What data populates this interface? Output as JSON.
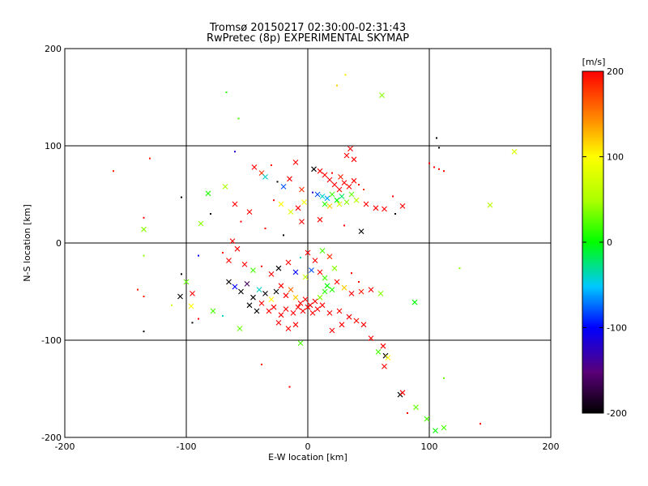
{
  "chart_data": {
    "type": "scatter",
    "title": "Tromsø 20150217 02:30:00-02:31:43",
    "subtitle": "RwPretec (8p) EXPERIMENTAL SKYMAP",
    "xlabel": "E-W location [km]",
    "ylabel": "N-S location [km]",
    "xlim": [
      -200,
      200
    ],
    "ylim": [
      -200,
      200
    ],
    "x_ticks": [
      "-200",
      "-100",
      "0",
      "100",
      "200"
    ],
    "y_ticks": [
      "-200",
      "-100",
      "0",
      "100",
      "200"
    ],
    "grid": true,
    "colorbar": {
      "label": "[m/s]",
      "range": [
        -200,
        200
      ],
      "ticks": [
        "-200",
        "-100",
        "0",
        "100",
        "200"
      ],
      "colormap": "rainbow (black-purple-blue-cyan-green-yellow-orange-red)"
    },
    "points": [
      {
        "x": -67,
        "y": 155,
        "v": 10,
        "m": "dot"
      },
      {
        "x": -57,
        "y": 128,
        "v": 20,
        "m": "dot"
      },
      {
        "x": 24,
        "y": 162,
        "v": 120,
        "m": "dot"
      },
      {
        "x": 31,
        "y": 173,
        "v": 110,
        "m": "dot"
      },
      {
        "x": 61,
        "y": 152,
        "v": 40,
        "m": "x"
      },
      {
        "x": -60,
        "y": 94,
        "v": -120,
        "m": "dot"
      },
      {
        "x": -130,
        "y": 87,
        "v": 190,
        "m": "dot"
      },
      {
        "x": -160,
        "y": 74,
        "v": 190,
        "m": "dot"
      },
      {
        "x": -104,
        "y": 47,
        "v": -200,
        "m": "dot"
      },
      {
        "x": 106,
        "y": 108,
        "v": -200,
        "m": "dot"
      },
      {
        "x": 108,
        "y": 98,
        "v": -200,
        "m": "dot"
      },
      {
        "x": 170,
        "y": 94,
        "v": 80,
        "m": "x"
      },
      {
        "x": 100,
        "y": 82,
        "v": 200,
        "m": "dot"
      },
      {
        "x": 104,
        "y": 78,
        "v": 200,
        "m": "dot"
      },
      {
        "x": 108,
        "y": 76,
        "v": 200,
        "m": "dot"
      },
      {
        "x": 112,
        "y": 74,
        "v": 200,
        "m": "dot"
      },
      {
        "x": 150,
        "y": 39,
        "v": 60,
        "m": "x"
      },
      {
        "x": -44,
        "y": 78,
        "v": 200,
        "m": "x"
      },
      {
        "x": -38,
        "y": 72,
        "v": 180,
        "m": "x"
      },
      {
        "x": -35,
        "y": 68,
        "v": -40,
        "m": "x"
      },
      {
        "x": -30,
        "y": 80,
        "v": 200,
        "m": "dot"
      },
      {
        "x": -25,
        "y": 63,
        "v": -200,
        "m": "dot"
      },
      {
        "x": -20,
        "y": 58,
        "v": -80,
        "m": "x"
      },
      {
        "x": -15,
        "y": 66,
        "v": 200,
        "m": "x"
      },
      {
        "x": -10,
        "y": 83,
        "v": 200,
        "m": "x"
      },
      {
        "x": -5,
        "y": 55,
        "v": 180,
        "m": "x"
      },
      {
        "x": 5,
        "y": 76,
        "v": -200,
        "m": "x"
      },
      {
        "x": 10,
        "y": 74,
        "v": 200,
        "m": "x"
      },
      {
        "x": 14,
        "y": 70,
        "v": 200,
        "m": "x"
      },
      {
        "x": 18,
        "y": 65,
        "v": 200,
        "m": "x"
      },
      {
        "x": 22,
        "y": 60,
        "v": 200,
        "m": "x"
      },
      {
        "x": 26,
        "y": 55,
        "v": 200,
        "m": "x"
      },
      {
        "x": 30,
        "y": 62,
        "v": 200,
        "m": "x"
      },
      {
        "x": 34,
        "y": 58,
        "v": 200,
        "m": "x"
      },
      {
        "x": 38,
        "y": 64,
        "v": 200,
        "m": "x"
      },
      {
        "x": 27,
        "y": 68,
        "v": 190,
        "m": "x"
      },
      {
        "x": 20,
        "y": 72,
        "v": 200,
        "m": "dot"
      },
      {
        "x": 42,
        "y": 60,
        "v": 200,
        "m": "dot"
      },
      {
        "x": 46,
        "y": 55,
        "v": 180,
        "m": "dot"
      },
      {
        "x": 35,
        "y": 97,
        "v": 200,
        "m": "x"
      },
      {
        "x": 32,
        "y": 90,
        "v": 200,
        "m": "x"
      },
      {
        "x": 38,
        "y": 86,
        "v": 200,
        "m": "x"
      },
      {
        "x": 8,
        "y": 50,
        "v": -80,
        "m": "x"
      },
      {
        "x": 12,
        "y": 48,
        "v": -40,
        "m": "x"
      },
      {
        "x": 16,
        "y": 46,
        "v": -60,
        "m": "x"
      },
      {
        "x": 20,
        "y": 50,
        "v": 20,
        "m": "x"
      },
      {
        "x": 24,
        "y": 44,
        "v": 0,
        "m": "x"
      },
      {
        "x": 28,
        "y": 48,
        "v": -20,
        "m": "x"
      },
      {
        "x": 32,
        "y": 42,
        "v": 40,
        "m": "x"
      },
      {
        "x": 36,
        "y": 50,
        "v": 30,
        "m": "x"
      },
      {
        "x": 14,
        "y": 40,
        "v": 10,
        "m": "x"
      },
      {
        "x": 18,
        "y": 38,
        "v": 120,
        "m": "x"
      },
      {
        "x": 26,
        "y": 40,
        "v": 80,
        "m": "x"
      },
      {
        "x": 40,
        "y": 44,
        "v": 60,
        "m": "x"
      },
      {
        "x": 4,
        "y": 52,
        "v": -120,
        "m": "dot"
      },
      {
        "x": -3,
        "y": 42,
        "v": 100,
        "m": "x"
      },
      {
        "x": -8,
        "y": 36,
        "v": 200,
        "m": "x"
      },
      {
        "x": -14,
        "y": 32,
        "v": 80,
        "m": "x"
      },
      {
        "x": -22,
        "y": 40,
        "v": 100,
        "m": "x"
      },
      {
        "x": -28,
        "y": 44,
        "v": 200,
        "m": "dot"
      },
      {
        "x": 48,
        "y": 40,
        "v": 200,
        "m": "x"
      },
      {
        "x": 56,
        "y": 36,
        "v": 200,
        "m": "x"
      },
      {
        "x": 63,
        "y": 35,
        "v": 200,
        "m": "x"
      },
      {
        "x": 72,
        "y": 30,
        "v": -200,
        "m": "dot"
      },
      {
        "x": 78,
        "y": 38,
        "v": 200,
        "m": "x"
      },
      {
        "x": 70,
        "y": 48,
        "v": 200,
        "m": "dot"
      },
      {
        "x": -68,
        "y": 58,
        "v": 50,
        "m": "x"
      },
      {
        "x": -82,
        "y": 51,
        "v": 10,
        "m": "x"
      },
      {
        "x": -60,
        "y": 40,
        "v": 200,
        "m": "x"
      },
      {
        "x": -48,
        "y": 32,
        "v": 200,
        "m": "x"
      },
      {
        "x": -80,
        "y": 30,
        "v": -200,
        "m": "dot"
      },
      {
        "x": -88,
        "y": 20,
        "v": 40,
        "m": "x"
      },
      {
        "x": -55,
        "y": 22,
        "v": 200,
        "m": "dot"
      },
      {
        "x": -135,
        "y": 26,
        "v": 200,
        "m": "dot"
      },
      {
        "x": -135,
        "y": 14,
        "v": 40,
        "m": "x"
      },
      {
        "x": -35,
        "y": 15,
        "v": 200,
        "m": "dot"
      },
      {
        "x": -20,
        "y": 8,
        "v": -200,
        "m": "dot"
      },
      {
        "x": -5,
        "y": 22,
        "v": 200,
        "m": "x"
      },
      {
        "x": 10,
        "y": 24,
        "v": 200,
        "m": "x"
      },
      {
        "x": 30,
        "y": 18,
        "v": 200,
        "m": "dot"
      },
      {
        "x": 44,
        "y": 12,
        "v": -200,
        "m": "x"
      },
      {
        "x": -62,
        "y": 2,
        "v": 200,
        "m": "x"
      },
      {
        "x": -58,
        "y": -6,
        "v": 200,
        "m": "x"
      },
      {
        "x": -70,
        "y": -10,
        "v": 200,
        "m": "dot"
      },
      {
        "x": -65,
        "y": -18,
        "v": 200,
        "m": "x"
      },
      {
        "x": -52,
        "y": -22,
        "v": 200,
        "m": "x"
      },
      {
        "x": -45,
        "y": -28,
        "v": 20,
        "m": "x"
      },
      {
        "x": -38,
        "y": -24,
        "v": 200,
        "m": "dot"
      },
      {
        "x": -30,
        "y": -32,
        "v": 200,
        "m": "x"
      },
      {
        "x": -24,
        "y": -26,
        "v": -200,
        "m": "x"
      },
      {
        "x": -16,
        "y": -20,
        "v": 200,
        "m": "x"
      },
      {
        "x": -10,
        "y": -30,
        "v": -100,
        "m": "x"
      },
      {
        "x": -6,
        "y": -15,
        "v": -40,
        "m": "dot"
      },
      {
        "x": 0,
        "y": -10,
        "v": 200,
        "m": "x"
      },
      {
        "x": 6,
        "y": -18,
        "v": 200,
        "m": "x"
      },
      {
        "x": 12,
        "y": -8,
        "v": 20,
        "m": "x"
      },
      {
        "x": 18,
        "y": -14,
        "v": 180,
        "m": "x"
      },
      {
        "x": 22,
        "y": -26,
        "v": 40,
        "m": "x"
      },
      {
        "x": 3,
        "y": -28,
        "v": -80,
        "m": "x"
      },
      {
        "x": -2,
        "y": -35,
        "v": 60,
        "m": "x"
      },
      {
        "x": 10,
        "y": -30,
        "v": 200,
        "m": "x"
      },
      {
        "x": 14,
        "y": -36,
        "v": 20,
        "m": "x"
      },
      {
        "x": 16,
        "y": -44,
        "v": 0,
        "m": "x"
      },
      {
        "x": 20,
        "y": -48,
        "v": 10,
        "m": "x"
      },
      {
        "x": 24,
        "y": -40,
        "v": 200,
        "m": "x"
      },
      {
        "x": 30,
        "y": -46,
        "v": 120,
        "m": "x"
      },
      {
        "x": 36,
        "y": -52,
        "v": 200,
        "m": "x"
      },
      {
        "x": 44,
        "y": -50,
        "v": 190,
        "m": "x"
      },
      {
        "x": 52,
        "y": -48,
        "v": 200,
        "m": "x"
      },
      {
        "x": 60,
        "y": -52,
        "v": 40,
        "m": "x"
      },
      {
        "x": -100,
        "y": -40,
        "v": 30,
        "m": "x"
      },
      {
        "x": -95,
        "y": -52,
        "v": 200,
        "m": "x"
      },
      {
        "x": -105,
        "y": -55,
        "v": -200,
        "m": "x"
      },
      {
        "x": -112,
        "y": -64,
        "v": 70,
        "m": "dot"
      },
      {
        "x": -96,
        "y": -65,
        "v": 100,
        "m": "x"
      },
      {
        "x": -135,
        "y": -55,
        "v": 190,
        "m": "dot"
      },
      {
        "x": -140,
        "y": -48,
        "v": 190,
        "m": "dot"
      },
      {
        "x": -65,
        "y": -40,
        "v": -200,
        "m": "x"
      },
      {
        "x": -60,
        "y": -45,
        "v": -100,
        "m": "x"
      },
      {
        "x": -55,
        "y": -50,
        "v": -200,
        "m": "x"
      },
      {
        "x": -50,
        "y": -42,
        "v": -160,
        "m": "x"
      },
      {
        "x": -45,
        "y": -56,
        "v": -200,
        "m": "x"
      },
      {
        "x": -40,
        "y": -48,
        "v": -40,
        "m": "x"
      },
      {
        "x": -35,
        "y": -52,
        "v": -200,
        "m": "x"
      },
      {
        "x": -30,
        "y": -58,
        "v": 100,
        "m": "x"
      },
      {
        "x": -26,
        "y": -50,
        "v": -200,
        "m": "x"
      },
      {
        "x": -22,
        "y": -44,
        "v": 200,
        "m": "x"
      },
      {
        "x": -18,
        "y": -54,
        "v": 200,
        "m": "x"
      },
      {
        "x": -14,
        "y": -48,
        "v": 160,
        "m": "x"
      },
      {
        "x": -10,
        "y": -56,
        "v": 120,
        "m": "x"
      },
      {
        "x": -6,
        "y": -62,
        "v": 200,
        "m": "x"
      },
      {
        "x": -2,
        "y": -58,
        "v": 200,
        "m": "x"
      },
      {
        "x": 2,
        "y": -64,
        "v": 200,
        "m": "x"
      },
      {
        "x": 6,
        "y": -60,
        "v": 200,
        "m": "x"
      },
      {
        "x": 10,
        "y": -56,
        "v": 40,
        "m": "x"
      },
      {
        "x": 14,
        "y": -50,
        "v": 10,
        "m": "x"
      },
      {
        "x": -48,
        "y": -64,
        "v": -200,
        "m": "x"
      },
      {
        "x": -42,
        "y": -70,
        "v": -200,
        "m": "x"
      },
      {
        "x": -38,
        "y": -62,
        "v": 200,
        "m": "x"
      },
      {
        "x": -32,
        "y": -70,
        "v": 200,
        "m": "x"
      },
      {
        "x": -28,
        "y": -66,
        "v": 200,
        "m": "x"
      },
      {
        "x": -22,
        "y": -74,
        "v": 200,
        "m": "x"
      },
      {
        "x": -18,
        "y": -68,
        "v": 200,
        "m": "x"
      },
      {
        "x": -12,
        "y": -72,
        "v": 200,
        "m": "x"
      },
      {
        "x": -8,
        "y": -66,
        "v": 200,
        "m": "x"
      },
      {
        "x": -4,
        "y": -70,
        "v": 200,
        "m": "x"
      },
      {
        "x": 0,
        "y": -66,
        "v": 200,
        "m": "x"
      },
      {
        "x": 4,
        "y": -72,
        "v": 200,
        "m": "x"
      },
      {
        "x": 8,
        "y": -68,
        "v": 200,
        "m": "x"
      },
      {
        "x": 12,
        "y": -64,
        "v": 200,
        "m": "x"
      },
      {
        "x": 18,
        "y": -72,
        "v": 200,
        "m": "x"
      },
      {
        "x": 26,
        "y": -70,
        "v": 200,
        "m": "x"
      },
      {
        "x": 34,
        "y": -76,
        "v": 200,
        "m": "x"
      },
      {
        "x": 40,
        "y": -80,
        "v": 200,
        "m": "x"
      },
      {
        "x": 46,
        "y": -84,
        "v": 200,
        "m": "x"
      },
      {
        "x": -24,
        "y": -82,
        "v": 200,
        "m": "x"
      },
      {
        "x": -16,
        "y": -88,
        "v": 200,
        "m": "x"
      },
      {
        "x": -10,
        "y": -84,
        "v": 200,
        "m": "x"
      },
      {
        "x": 20,
        "y": -90,
        "v": 200,
        "m": "x"
      },
      {
        "x": 28,
        "y": -84,
        "v": 200,
        "m": "x"
      },
      {
        "x": -78,
        "y": -70,
        "v": 20,
        "m": "x"
      },
      {
        "x": -70,
        "y": -75,
        "v": -40,
        "m": "dot"
      },
      {
        "x": -90,
        "y": -78,
        "v": 200,
        "m": "dot"
      },
      {
        "x": -95,
        "y": -82,
        "v": -200,
        "m": "dot"
      },
      {
        "x": -56,
        "y": -88,
        "v": 30,
        "m": "x"
      },
      {
        "x": -135,
        "y": -91,
        "v": -200,
        "m": "dot"
      },
      {
        "x": 88,
        "y": -61,
        "v": 0,
        "m": "x"
      },
      {
        "x": 125,
        "y": -26,
        "v": 40,
        "m": "dot"
      },
      {
        "x": 52,
        "y": -98,
        "v": 200,
        "m": "x"
      },
      {
        "x": 62,
        "y": -106,
        "v": 200,
        "m": "x"
      },
      {
        "x": 58,
        "y": -112,
        "v": 20,
        "m": "x"
      },
      {
        "x": 64,
        "y": -116,
        "v": -200,
        "m": "x"
      },
      {
        "x": 66,
        "y": -118,
        "v": 100,
        "m": "x"
      },
      {
        "x": 63,
        "y": -127,
        "v": 200,
        "m": "x"
      },
      {
        "x": -6,
        "y": -103,
        "v": 20,
        "m": "x"
      },
      {
        "x": -38,
        "y": -125,
        "v": 200,
        "m": "dot"
      },
      {
        "x": -15,
        "y": -148,
        "v": 200,
        "m": "dot"
      },
      {
        "x": 76,
        "y": -156,
        "v": -200,
        "m": "x"
      },
      {
        "x": 78,
        "y": -154,
        "v": 200,
        "m": "x"
      },
      {
        "x": 89,
        "y": -169,
        "v": 30,
        "m": "x"
      },
      {
        "x": 82,
        "y": -175,
        "v": 200,
        "m": "dot"
      },
      {
        "x": 98,
        "y": -181,
        "v": 20,
        "m": "x"
      },
      {
        "x": 105,
        "y": -193,
        "v": 0,
        "m": "x"
      },
      {
        "x": 112,
        "y": -190,
        "v": 20,
        "m": "x"
      },
      {
        "x": 112,
        "y": -139,
        "v": 30,
        "m": "dot"
      },
      {
        "x": 142,
        "y": -186,
        "v": 200,
        "m": "dot"
      },
      {
        "x": -135,
        "y": -13,
        "v": 40,
        "m": "dot"
      },
      {
        "x": -104,
        "y": -32,
        "v": -200,
        "m": "dot"
      },
      {
        "x": -90,
        "y": -13,
        "v": -100,
        "m": "dot"
      },
      {
        "x": 36,
        "y": -31,
        "v": 200,
        "m": "dot"
      },
      {
        "x": 42,
        "y": -40,
        "v": 200,
        "m": "dot"
      }
    ]
  }
}
